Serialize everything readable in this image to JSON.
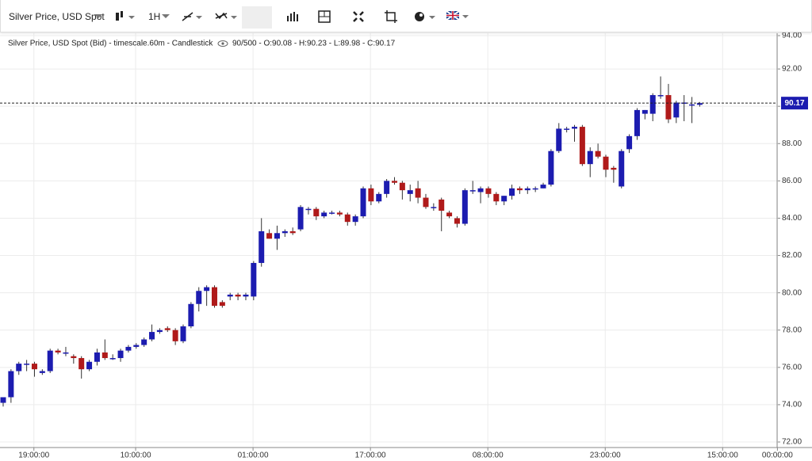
{
  "toolbar": {
    "symbol": "Silver Price, USD Spot",
    "interval": "1H"
  },
  "chart_data": {
    "type": "candlestick",
    "legend": "Silver Price, USD Spot (Bid) - timescale.60m - Candlestick",
    "stats": "90/500 - O:90.08 - H:90.23 - L:89.98 - C:90.17",
    "categories": [
      null,
      null,
      "19:00:00",
      null,
      null,
      null,
      null,
      null,
      null,
      null,
      null,
      null,
      null,
      null,
      null,
      "10:00:00",
      null,
      null,
      null,
      null,
      null,
      null,
      null,
      null,
      null,
      null,
      null,
      null,
      null,
      null,
      "01:00:00",
      null,
      null,
      null,
      null,
      null,
      null,
      null,
      null,
      null,
      null,
      null,
      null,
      null,
      null,
      "17:00:00",
      null,
      null,
      null,
      null,
      null,
      null,
      null,
      null,
      null,
      null,
      null,
      null,
      null,
      null,
      "08:00:00",
      null,
      null,
      null,
      null,
      null,
      null,
      null,
      null,
      null,
      null,
      null,
      null,
      null,
      null,
      "23:00:00",
      null,
      null,
      null,
      null,
      null,
      null,
      null,
      null,
      null,
      null,
      null,
      null,
      null,
      null,
      "15:00:00",
      null,
      null,
      null,
      null,
      null,
      null,
      "00:00:00"
    ],
    "open": [
      74.1,
      74.4,
      75.8,
      76.2,
      76.2,
      75.7,
      75.8,
      76.9,
      76.8,
      76.6,
      76.5,
      75.9,
      76.3,
      76.8,
      76.5,
      76.5,
      76.9,
      77.1,
      77.2,
      77.5,
      77.9,
      78.1,
      78.0,
      77.4,
      78.2,
      79.4,
      80.1,
      80.3,
      79.5,
      79.8,
      79.9,
      79.8,
      79.8,
      81.6,
      83.2,
      82.9,
      83.2,
      83.3,
      83.4,
      84.5,
      84.5,
      84.1,
      84.3,
      84.3,
      84.2,
      83.8,
      84.1,
      85.6,
      84.9,
      85.3,
      86.0,
      85.9,
      85.3,
      85.6,
      85.1,
      84.6,
      85.0,
      84.3,
      84.0,
      83.7,
      85.5,
      85.4,
      85.6,
      85.3,
      84.9,
      85.2,
      85.6,
      85.5,
      85.6,
      85.6,
      85.8,
      87.6,
      88.8,
      88.8,
      88.9,
      86.9,
      87.6,
      87.3,
      86.7,
      85.7,
      87.7,
      88.4,
      89.6,
      89.6,
      90.6,
      90.6,
      89.4,
      90.2,
      90.1,
      90.08,
      null,
      null,
      null,
      null,
      null,
      null,
      null,
      null
    ],
    "high": [
      74.4,
      75.9,
      76.3,
      76.4,
      76.3,
      75.9,
      77.0,
      77.0,
      77.1,
      76.7,
      76.6,
      76.4,
      77.0,
      77.5,
      76.7,
      77.0,
      77.2,
      77.3,
      77.6,
      78.3,
      78.1,
      78.2,
      78.1,
      78.3,
      79.5,
      80.3,
      80.4,
      80.4,
      79.6,
      80.0,
      80.0,
      80.0,
      81.7,
      84.0,
      83.4,
      83.6,
      83.4,
      83.5,
      84.7,
      84.6,
      84.6,
      84.4,
      84.4,
      84.4,
      84.3,
      84.2,
      85.7,
      85.8,
      85.4,
      86.1,
      86.2,
      86.0,
      85.8,
      86.0,
      85.3,
      84.8,
      85.1,
      84.4,
      84.1,
      85.6,
      86.0,
      85.7,
      85.7,
      85.4,
      85.2,
      85.8,
      85.7,
      85.7,
      85.7,
      85.9,
      87.7,
      89.1,
      88.9,
      89.0,
      89.0,
      87.8,
      88.0,
      87.4,
      86.8,
      87.7,
      88.5,
      89.9,
      89.8,
      90.7,
      91.6,
      91.2,
      90.3,
      90.6,
      90.5,
      90.23,
      null,
      null,
      null,
      null,
      null,
      null,
      null,
      null
    ],
    "low": [
      73.9,
      74.1,
      75.6,
      75.8,
      75.5,
      75.6,
      75.7,
      76.7,
      76.6,
      76.2,
      75.4,
      75.8,
      76.1,
      76.4,
      76.4,
      76.3,
      76.8,
      77.0,
      77.1,
      77.4,
      77.8,
      77.9,
      77.2,
      77.3,
      78.1,
      79.0,
      79.3,
      79.2,
      79.2,
      79.6,
      79.6,
      79.6,
      79.6,
      81.4,
      82.9,
      82.3,
      83.0,
      83.1,
      83.3,
      84.2,
      83.9,
      84.0,
      84.2,
      84.1,
      83.6,
      83.6,
      84.0,
      84.7,
      84.8,
      85.1,
      85.8,
      85.0,
      84.9,
      84.8,
      84.5,
      84.4,
      83.3,
      84.0,
      83.5,
      83.6,
      85.3,
      84.8,
      85.1,
      84.7,
      84.7,
      85.0,
      85.3,
      85.3,
      85.4,
      85.6,
      85.7,
      87.5,
      88.6,
      88.1,
      86.8,
      86.2,
      87.2,
      86.2,
      85.9,
      85.6,
      87.5,
      88.2,
      89.3,
      89.2,
      90.4,
      89.1,
      89.1,
      89.2,
      89.1,
      89.98,
      null,
      null,
      null,
      null,
      null,
      null,
      null,
      null
    ],
    "close": [
      74.4,
      75.8,
      76.2,
      76.2,
      75.9,
      75.8,
      76.9,
      76.8,
      76.8,
      76.5,
      75.9,
      76.3,
      76.8,
      76.5,
      76.5,
      76.9,
      77.1,
      77.2,
      77.5,
      77.9,
      78.0,
      78.0,
      77.4,
      78.2,
      79.4,
      80.1,
      80.3,
      79.3,
      79.3,
      79.9,
      79.8,
      79.9,
      81.6,
      83.3,
      82.9,
      83.2,
      83.3,
      83.2,
      84.6,
      84.5,
      84.1,
      84.3,
      84.3,
      84.2,
      83.8,
      84.1,
      85.6,
      84.9,
      85.3,
      86.0,
      85.9,
      85.5,
      85.5,
      85.1,
      84.6,
      84.6,
      84.4,
      84.1,
      83.7,
      85.5,
      85.5,
      85.6,
      85.3,
      84.9,
      85.2,
      85.6,
      85.5,
      85.6,
      85.6,
      85.8,
      87.6,
      88.8,
      88.8,
      88.9,
      86.9,
      87.6,
      87.3,
      86.6,
      86.6,
      87.6,
      88.4,
      89.8,
      89.8,
      90.6,
      90.6,
      89.3,
      90.2,
      90.2,
      90.1,
      90.17,
      null,
      null,
      null,
      null,
      null,
      null,
      null,
      null
    ],
    "up_color": "#1c1cb0",
    "down_color": "#b01a1a",
    "ylim": [
      72,
      94
    ],
    "yticks": [
      {
        "value": 72,
        "label": "72.00"
      },
      {
        "value": 74,
        "label": "74.00"
      },
      {
        "value": 76,
        "label": "76.00"
      },
      {
        "value": 78,
        "label": "78.00"
      },
      {
        "value": 80,
        "label": "80.00"
      },
      {
        "value": 82,
        "label": "82.00"
      },
      {
        "value": 84,
        "label": "84.00"
      },
      {
        "value": 86,
        "label": "86.00"
      },
      {
        "value": 88,
        "label": "88.00"
      },
      {
        "value": 90,
        "label": "90.00"
      },
      {
        "value": 92,
        "label": "92.00"
      },
      {
        "value": 94,
        "label": "94.00"
      }
    ],
    "grid": true
  }
}
